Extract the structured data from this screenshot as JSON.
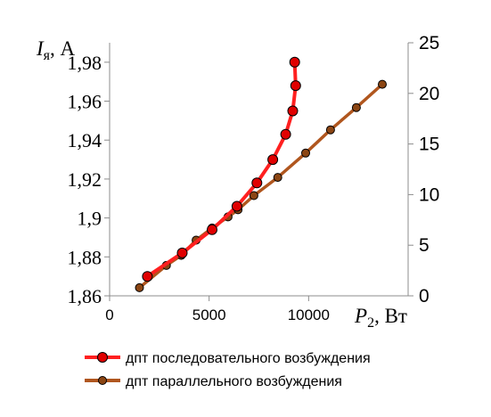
{
  "chart_data": {
    "type": "line",
    "title": "",
    "y_left_label": {
      "var": "I",
      "sub": "я",
      "unit": ", А"
    },
    "x_label": {
      "var": "P",
      "sub": "2",
      "unit": ", Вт"
    },
    "x_axis": {
      "min": 0,
      "max": 15000,
      "ticks": [
        0,
        5000,
        10000
      ],
      "tick_labels": [
        "0",
        "5000",
        "10000"
      ]
    },
    "y_left_axis": {
      "min": 1.86,
      "max": 1.99,
      "ticks": [
        1.86,
        1.88,
        1.9,
        1.92,
        1.94,
        1.96,
        1.98
      ],
      "tick_labels": [
        "1,86",
        "1,88",
        "1,9",
        "1,92",
        "1,94",
        "1,96",
        "1,98"
      ]
    },
    "y_right_axis": {
      "min": 0,
      "max": 25,
      "ticks": [
        0,
        5,
        10,
        15,
        20,
        25
      ],
      "tick_labels": [
        "0",
        "5",
        "10",
        "15",
        "20",
        "25"
      ]
    },
    "grid": false,
    "legend_position": "bottom",
    "series": [
      {
        "name": "дпт последовательного возбуждения",
        "color": "#ff2020",
        "marker_color": "#e00000",
        "axis": "left",
        "x": [
          1900,
          3650,
          5150,
          6400,
          7400,
          8200,
          8850,
          9200,
          9350,
          9300
        ],
        "y": [
          1.87,
          1.882,
          1.894,
          1.906,
          1.918,
          1.93,
          1.943,
          1.955,
          1.968,
          1.98
        ]
      },
      {
        "name": "дпт параллельного возбуждения",
        "color": "#b0561e",
        "marker_color": "#8b4513",
        "axis": "right",
        "x": [
          1500,
          2850,
          3600,
          4350,
          5150,
          5950,
          6450,
          7250,
          8450,
          9850,
          11100,
          12400,
          13700
        ],
        "y": [
          0.8,
          3.0,
          4.0,
          5.5,
          6.7,
          7.8,
          8.5,
          9.9,
          11.7,
          14.1,
          16.4,
          18.6,
          20.9
        ]
      }
    ]
  }
}
